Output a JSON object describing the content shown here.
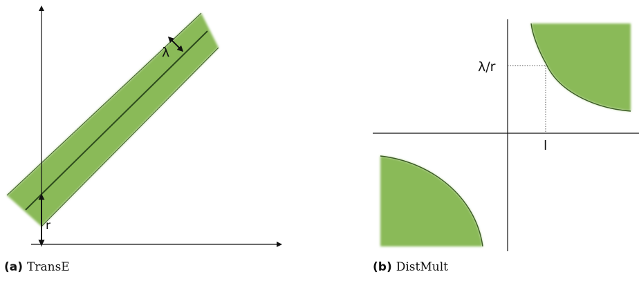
{
  "colors": {
    "band": "#8aba58",
    "curve": "#3a5a24",
    "axis": "#111111"
  },
  "panel_a": {
    "caption_label": "(a)",
    "caption_name": "TransE",
    "labels": {
      "margin": "λ",
      "offset": "r"
    }
  },
  "panel_b": {
    "caption_label": "(b)",
    "caption_name": "DistMult",
    "labels": {
      "y_mark": "λ/r",
      "x_mark": "l"
    }
  }
}
